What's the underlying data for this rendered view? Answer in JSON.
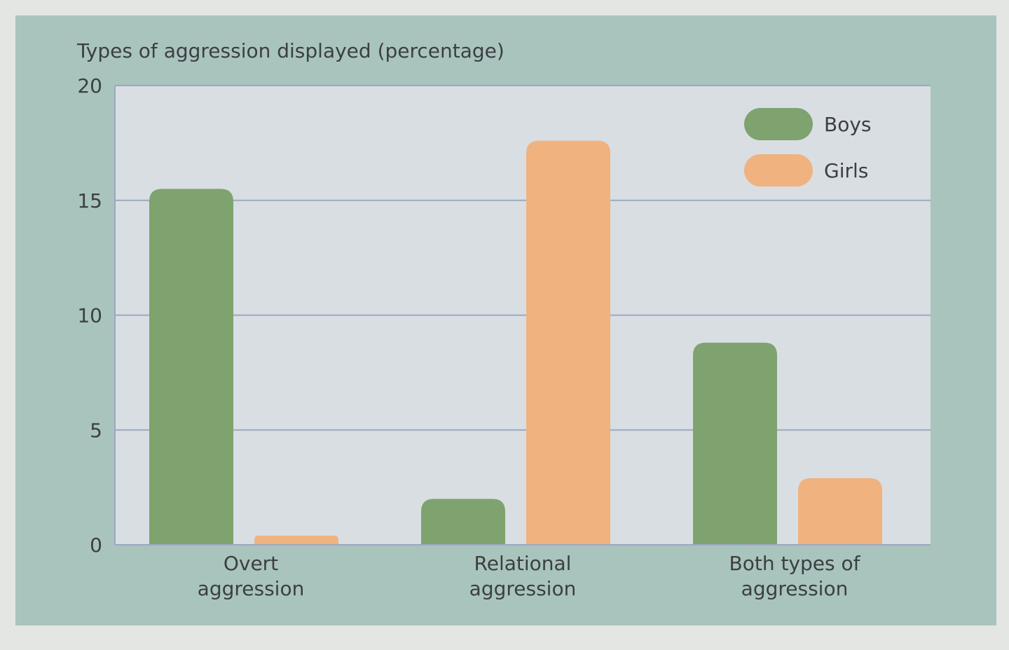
{
  "chart_data": {
    "type": "bar",
    "ylabel": "Types of aggression displayed (percentage)",
    "xlabel": "",
    "ylim": [
      0,
      20
    ],
    "yticks": [
      0,
      5,
      10,
      15,
      20
    ],
    "grid": true,
    "legend_position": "top-right",
    "categories": [
      [
        "Overt",
        "aggression"
      ],
      [
        "Relational",
        "aggression"
      ],
      [
        "Both types of",
        "aggression"
      ]
    ],
    "series": [
      {
        "name": "Boys",
        "color": "#7ea36f",
        "values": [
          15.5,
          2.0,
          8.8
        ]
      },
      {
        "name": "Girls",
        "color": "#f0b27f",
        "values": [
          0.4,
          17.6,
          2.9
        ]
      }
    ],
    "colors": {
      "plot_background": "#d9dee3",
      "gridline": "#9aa8c2",
      "frame": "#a9c4bd"
    }
  }
}
